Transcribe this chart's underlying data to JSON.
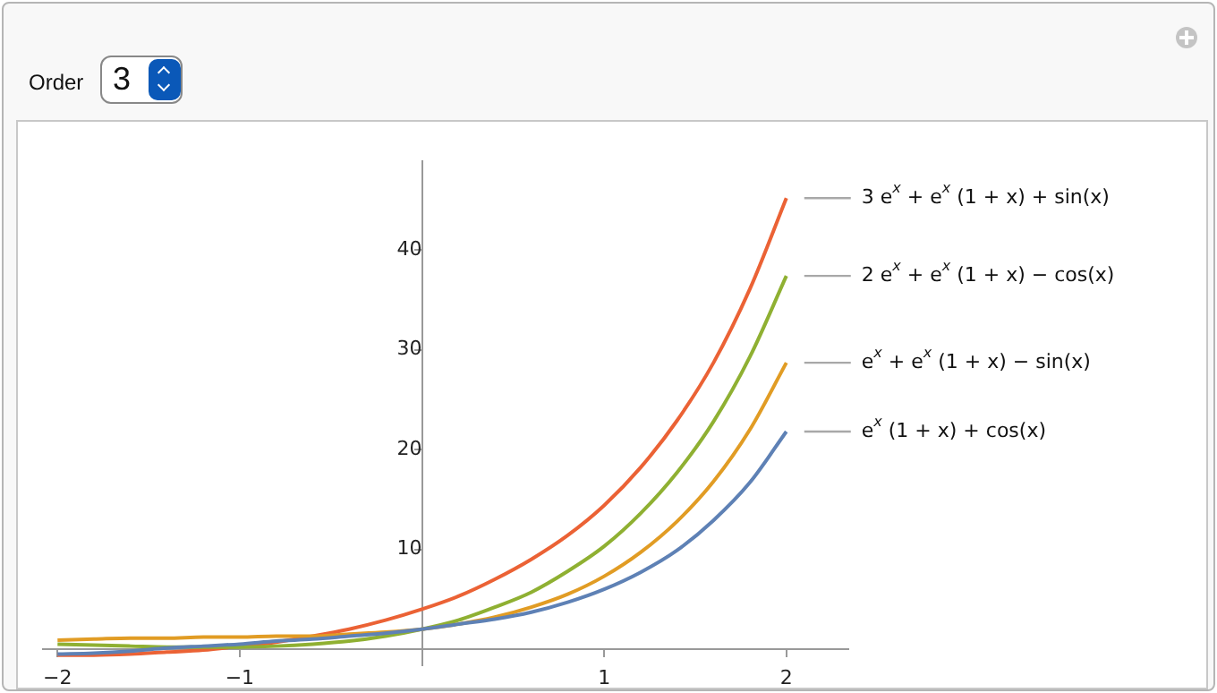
{
  "chart_data": {
    "type": "line",
    "x": [
      -2,
      -1.8,
      -1.6,
      -1.4,
      -1.2,
      -1,
      -0.8,
      -0.6,
      -0.4,
      -0.2,
      0,
      0.2,
      0.4,
      0.6,
      0.8,
      1,
      1.2,
      1.4,
      1.6,
      1.8,
      2
    ],
    "series": [
      {
        "name": "e$^{x}$ (1 + x) + cos(x)",
        "color": "#5e81b5",
        "values": [
          -0.5,
          -0.4,
          -0.2,
          0.1,
          0.3,
          0.5,
          0.8,
          1,
          1.3,
          1.6,
          2,
          2.5,
          3,
          3.7,
          4.7,
          6,
          7.7,
          9.9,
          12.9,
          16.7,
          21.8
        ]
      },
      {
        "name": "e$^{x}$ + e$^{x}$ (1 + x) − sin(x)",
        "color": "#e19c24",
        "values": [
          0.9,
          1,
          1.1,
          1.1,
          1.2,
          1.2,
          1.3,
          1.3,
          1.5,
          1.7,
          2,
          2.5,
          3.2,
          4.2,
          5.5,
          7.3,
          9.7,
          12.8,
          16.8,
          22,
          28.7
        ]
      },
      {
        "name": "2 e$^{x}$ + e$^{x}$ (1 + x) − cos(x)",
        "color": "#8fb032",
        "values": [
          0.5,
          0.4,
          0.3,
          0.2,
          0.2,
          0.2,
          0.3,
          0.5,
          0.8,
          1.3,
          2,
          2.9,
          4.2,
          5.7,
          7.8,
          10.3,
          13.6,
          17.7,
          22.8,
          29.3,
          37.4
        ]
      },
      {
        "name": "3 e$^{x}$ + e$^{x}$ (1 + x) + sin(x)",
        "color": "#eb6235",
        "values": [
          -0.6,
          -0.6,
          -0.5,
          -0.3,
          -0.1,
          0.3,
          0.7,
          1.3,
          2,
          2.9,
          4,
          5.3,
          7,
          9,
          11.4,
          14.4,
          18.2,
          22.9,
          28.7,
          36.1,
          45.2
        ]
      }
    ],
    "xlim": [
      -2.08,
      2.34
    ],
    "ylim": [
      -1.6,
      48.9
    ],
    "xticks": [
      {
        "value": -2,
        "label": "−2"
      },
      {
        "value": -1,
        "label": "−1"
      },
      1,
      2
    ],
    "yticks": [
      10,
      20,
      30,
      40
    ],
    "grid": false,
    "marker": "none",
    "line_style": "solid",
    "annotations": [
      "Order",
      "3"
    ]
  }
}
